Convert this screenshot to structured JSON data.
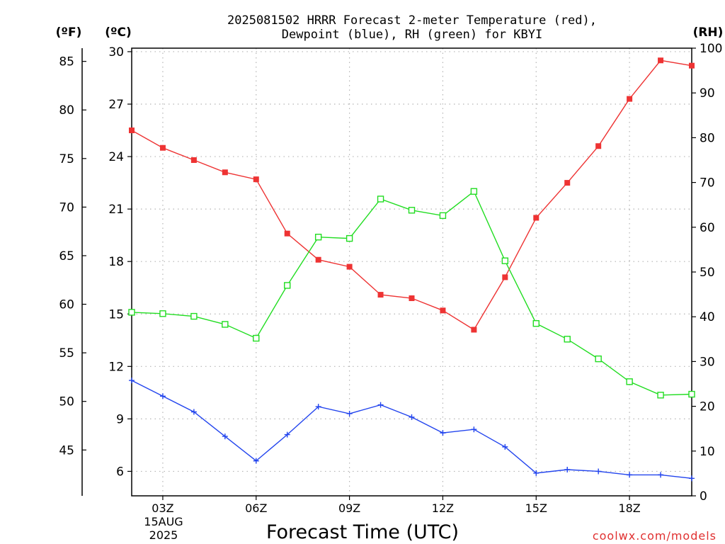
{
  "chart_data": {
    "type": "line",
    "title_line1": "2025081502 HRRR Forecast 2-meter Temperature (red),",
    "title_line2": "Dewpoint (blue), RH (green) for KBYI",
    "xlabel": "Forecast Time (UTC)",
    "date_line1": "15AUG",
    "date_line2": "2025",
    "watermark": "coolwx.com/models",
    "unit_f": "(ºF)",
    "unit_c": "(ºC)",
    "unit_rh": "(RH)",
    "x": [
      2,
      3,
      4,
      5,
      6,
      7,
      8,
      9,
      10,
      11,
      12,
      13,
      14,
      15,
      16,
      17,
      18,
      19,
      20
    ],
    "xlim": [
      2,
      20
    ],
    "xticks": [
      3,
      6,
      9,
      12,
      15,
      18
    ],
    "xtick_labels": [
      "03Z",
      "06Z",
      "09Z",
      "12Z",
      "15Z",
      "18Z"
    ],
    "ylim_c": [
      4.6,
      30.2
    ],
    "yticks_c": [
      6,
      9,
      12,
      15,
      18,
      21,
      24,
      27,
      30
    ],
    "yticks_f": [
      45,
      50,
      55,
      60,
      65,
      70,
      75,
      80,
      85
    ],
    "ylim_rh": [
      0,
      100
    ],
    "yticks_rh": [
      0,
      10,
      20,
      30,
      40,
      50,
      60,
      70,
      80,
      90,
      100
    ],
    "grid": true,
    "series": [
      {
        "axis": "c",
        "color": "#ee3333",
        "marker": "filled-square",
        "values": [
          25.5,
          24.5,
          23.8,
          23.1,
          22.7,
          19.6,
          18.1,
          17.7,
          16.1,
          15.9,
          15.2,
          14.1,
          17.1,
          20.5,
          22.5,
          24.6,
          27.3,
          29.5,
          29.2
        ]
      },
      {
        "axis": "c",
        "color": "#2244ee",
        "marker": "plus",
        "values": [
          11.2,
          10.3,
          9.4,
          8.0,
          6.6,
          8.1,
          9.7,
          9.3,
          9.8,
          9.1,
          8.2,
          8.4,
          7.4,
          5.9,
          6.1,
          6.0,
          5.8,
          5.8,
          5.6
        ]
      },
      {
        "axis": "rh",
        "color": "#22dd22",
        "marker": "open-square",
        "values": [
          41.0,
          40.7,
          40.1,
          38.3,
          35.2,
          47.0,
          57.8,
          57.5,
          66.3,
          63.8,
          62.6,
          68.0,
          52.5,
          38.5,
          35.0,
          30.6,
          25.5,
          22.5,
          22.7
        ]
      }
    ]
  }
}
